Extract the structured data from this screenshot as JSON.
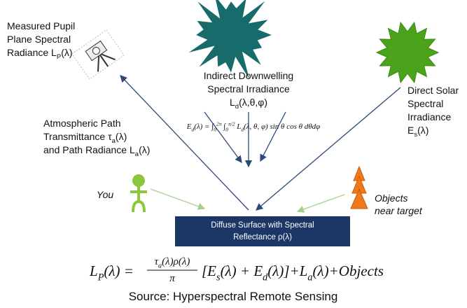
{
  "pupil_label": {
    "lines": [
      [
        "Measured Pupil"
      ],
      [
        "Plane Spectral"
      ],
      [
        "Radiance L",
        {
          "sub": "P"
        },
        "(λ)"
      ]
    ]
  },
  "downwelling_label": {
    "lines": [
      [
        "Indirect Downwelling"
      ],
      [
        "Spectral Irradiance"
      ],
      [
        "L",
        {
          "sub": "d"
        },
        "(λ,θ,φ)"
      ]
    ]
  },
  "integral": {
    "lines": [
      [
        "E",
        {
          "sub": "d"
        },
        "(λ) = ∫",
        {
          "sub": "0"
        },
        {
          "sup": "2π"
        },
        " ∫",
        {
          "sub": "0"
        },
        {
          "sup": "π/2"
        },
        " L",
        {
          "sub": "d"
        },
        "(λ, θ, φ) sin θ cos θ dθdφ"
      ]
    ]
  },
  "solar_label": {
    "lines": [
      [
        "Direct Solar"
      ],
      [
        "Spectral"
      ],
      [
        "Irradiance"
      ],
      [
        "E",
        {
          "sub": "s"
        },
        "(λ)"
      ]
    ]
  },
  "atmosphere_label": {
    "lines": [
      [
        "Atmospheric Path"
      ],
      [
        "Transmittance τ",
        {
          "sub": "a"
        },
        "(λ)"
      ],
      [
        "and Path Radiance L",
        {
          "sub": "a"
        },
        "(λ)"
      ]
    ]
  },
  "you_label": {
    "lines": [
      [
        "You"
      ]
    ]
  },
  "objects_label": {
    "lines": [
      [
        "Objects"
      ],
      [
        "near target"
      ]
    ]
  },
  "surface_label": {
    "lines": [
      [
        "Diffuse Surface with Spectral"
      ],
      [
        "Reflectance ρ(λ)"
      ]
    ]
  },
  "equation": {
    "lhs": {
      "lines": [
        [
          "L",
          {
            "sub": "P"
          },
          "(λ) ="
        ]
      ]
    },
    "numerator": {
      "lines": [
        [
          "τ",
          {
            "sub": "a"
          },
          "(λ)ρ(λ)"
        ]
      ]
    },
    "denominator": {
      "lines": [
        [
          "π"
        ]
      ]
    },
    "rhs": {
      "lines": [
        [
          "[E",
          {
            "sub": "s"
          },
          "(λ) + E",
          {
            "sub": "d"
          },
          "(λ)]+L",
          {
            "sub": "a"
          },
          "(λ)+Objects"
        ]
      ]
    }
  },
  "source": {
    "lines": [
      [
        "Source: Hyperspectral Remote Sensing"
      ]
    ]
  }
}
